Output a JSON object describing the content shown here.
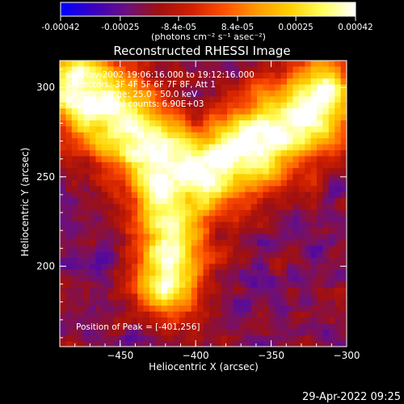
{
  "chart_data": {
    "type": "heatmap",
    "title": "Reconstructed RHESSI Image",
    "colorbar": {
      "ticks": [
        "-0.00042",
        "-0.00025",
        "-8.4e-05",
        "8.4e-05",
        "0.00025",
        "0.00042"
      ],
      "tick_values": [
        -0.00042,
        -0.00025,
        -8.4e-05,
        8.4e-05,
        0.00025,
        0.00042
      ],
      "range": [
        -0.00042,
        0.00042
      ],
      "units": "(photons cm⁻² s⁻¹ asec⁻²)",
      "colormap": [
        "#0000ff",
        "#3a00c0",
        "#6a1080",
        "#a01010",
        "#d02000",
        "#ff5000",
        "#ff9a00",
        "#ffd000",
        "#ffff60",
        "#ffffff"
      ]
    },
    "xlabel": "Heliocentric X (arcsec)",
    "ylabel": "Heliocentric Y (arcsec)",
    "x_ticks": [
      -450,
      -400,
      -350,
      -300
    ],
    "y_ticks": [
      200,
      250,
      300
    ],
    "xlim": [
      -490,
      -300
    ],
    "ylim": [
      155,
      315
    ],
    "annotations": {
      "line1": "24-May-2002 19:06:16.000 to 19:12:16.000",
      "line2": "Detectors: 3F 4F 5F 6F 7F 8F, Att 1",
      "line3": "Energy Range: 25.0 - 50.0 keV",
      "line4": "Clean     Total counts: 6.90E+03",
      "peak": "Position of Peak = [-401,256]"
    },
    "peak_position": [
      -401,
      256
    ]
  },
  "footer": {
    "timestamp": "29-Apr-2022 09:25"
  }
}
